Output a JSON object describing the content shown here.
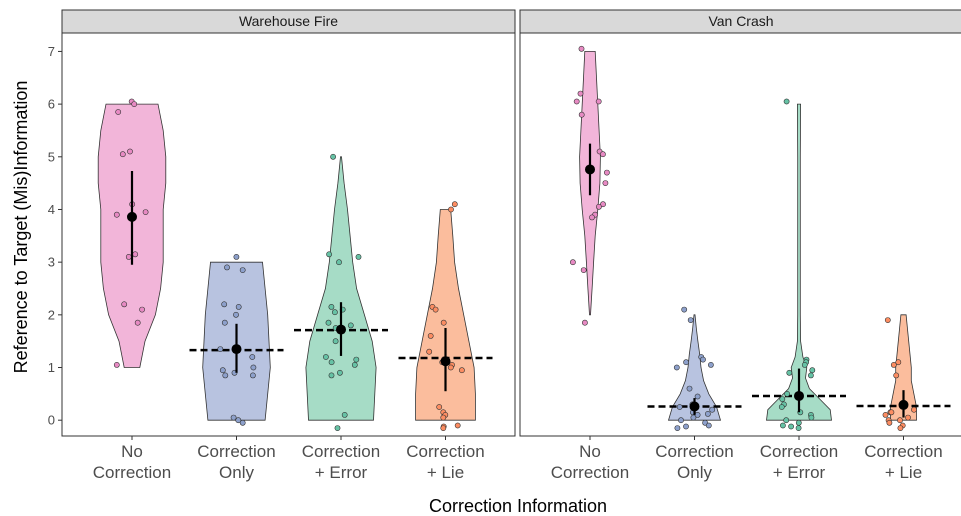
{
  "chart_data": {
    "type": "violin",
    "xlabel": "Correction Information",
    "ylabel": "Reference to Target (Mis)Information",
    "ylim": [
      -0.3,
      7.35
    ],
    "yticks": [
      0,
      1,
      2,
      3,
      4,
      5,
      6,
      7
    ],
    "grid": false,
    "categories": [
      [
        "No",
        "Correction"
      ],
      [
        "Correction",
        "Only"
      ],
      [
        "Correction",
        "+ Error"
      ],
      [
        "Correction",
        "+ Lie"
      ]
    ],
    "colors": [
      "#f2b5d9",
      "#b8c3e0",
      "#a6dcc6",
      "#fbbd9d"
    ],
    "point_colors": [
      "#e78ac3",
      "#8da0cb",
      "#66c2a5",
      "#fc8d62"
    ],
    "panels": [
      {
        "title": "Warehouse Fire",
        "groups": [
          {
            "mean": 3.86,
            "ci": [
              2.95,
              4.73
            ],
            "reference": null,
            "violin": [
              [
                1.0,
                0.03
              ],
              [
                1.5,
                0.05
              ],
              [
                2.0,
                0.09
              ],
              [
                2.5,
                0.11
              ],
              [
                3.0,
                0.12
              ],
              [
                3.5,
                0.12
              ],
              [
                4.0,
                0.12
              ],
              [
                4.5,
                0.13
              ],
              [
                5.0,
                0.13
              ],
              [
                5.5,
                0.12
              ],
              [
                6.0,
                0.1
              ]
            ],
            "points": [
              6.05,
              6.0,
              5.85,
              5.05,
              5.1,
              4.1,
              3.9,
              3.95,
              3.15,
              3.1,
              2.2,
              2.1,
              1.85,
              1.05
            ]
          },
          {
            "mean": 1.35,
            "ci": [
              0.9,
              1.83
            ],
            "reference": 1.33,
            "violin": [
              [
                0.0,
                0.11
              ],
              [
                0.5,
                0.12
              ],
              [
                1.0,
                0.13
              ],
              [
                1.5,
                0.125
              ],
              [
                2.0,
                0.12
              ],
              [
                2.5,
                0.11
              ],
              [
                3.0,
                0.1
              ]
            ],
            "points": [
              3.1,
              2.9,
              2.85,
              2.2,
              2.15,
              2.0,
              1.85,
              1.35,
              1.2,
              1.0,
              0.95,
              0.9,
              0.85,
              0.85,
              0.05,
              0.0,
              -0.05
            ]
          },
          {
            "mean": 1.72,
            "ci": [
              1.22,
              2.24
            ],
            "reference": 1.71,
            "violin": [
              [
                0.0,
                0.125
              ],
              [
                0.5,
                0.13
              ],
              [
                1.0,
                0.135
              ],
              [
                1.5,
                0.12
              ],
              [
                2.0,
                0.09
              ],
              [
                2.5,
                0.06
              ],
              [
                3.0,
                0.045
              ],
              [
                3.5,
                0.035
              ],
              [
                4.0,
                0.025
              ],
              [
                4.5,
                0.012
              ],
              [
                5.0,
                0.002
              ]
            ],
            "points": [
              5.0,
              3.15,
              3.1,
              3.0,
              2.15,
              2.1,
              2.05,
              1.85,
              1.8,
              1.75,
              1.5,
              1.2,
              1.15,
              1.1,
              1.05,
              0.9,
              0.85,
              0.1,
              -0.15
            ]
          },
          {
            "mean": 1.12,
            "ci": [
              0.55,
              1.75
            ],
            "reference": 1.18,
            "violin": [
              [
                0.0,
                0.115
              ],
              [
                0.5,
                0.115
              ],
              [
                1.0,
                0.11
              ],
              [
                1.5,
                0.09
              ],
              [
                2.0,
                0.07
              ],
              [
                2.5,
                0.05
              ],
              [
                3.0,
                0.035
              ],
              [
                3.5,
                0.028
              ],
              [
                4.0,
                0.02
              ]
            ],
            "points": [
              4.1,
              4.0,
              2.15,
              2.1,
              1.85,
              1.6,
              1.3,
              1.1,
              1.05,
              1.0,
              0.95,
              0.25,
              0.15,
              0.1,
              0.05,
              -0.1,
              -0.12,
              -0.15
            ]
          }
        ]
      },
      {
        "title": "Van Crash",
        "groups": [
          {
            "mean": 4.76,
            "ci": [
              4.27,
              5.25
            ],
            "reference": null,
            "violin": [
              [
                2.0,
                0.002
              ],
              [
                2.5,
                0.008
              ],
              [
                3.0,
                0.014
              ],
              [
                3.5,
                0.02
              ],
              [
                4.0,
                0.03
              ],
              [
                4.5,
                0.038
              ],
              [
                5.0,
                0.04
              ],
              [
                5.5,
                0.035
              ],
              [
                6.0,
                0.03
              ],
              [
                6.5,
                0.025
              ],
              [
                7.0,
                0.02
              ]
            ],
            "points": [
              7.05,
              6.2,
              6.05,
              6.05,
              5.8,
              5.1,
              5.05,
              4.7,
              4.5,
              4.1,
              4.05,
              3.9,
              3.85,
              3.0,
              2.85,
              1.85
            ]
          },
          {
            "mean": 0.26,
            "ci": [
              0.1,
              0.42
            ],
            "reference": 0.26,
            "violin": [
              [
                0.0,
                0.1
              ],
              [
                0.25,
                0.085
              ],
              [
                0.5,
                0.055
              ],
              [
                0.75,
                0.035
              ],
              [
                1.0,
                0.025
              ],
              [
                1.25,
                0.02
              ],
              [
                1.5,
                0.013
              ],
              [
                1.75,
                0.007
              ],
              [
                2.0,
                0.002
              ]
            ],
            "points": [
              2.1,
              1.9,
              1.2,
              1.15,
              1.1,
              1.05,
              1.0,
              0.6,
              0.45,
              0.3,
              0.25,
              0.2,
              0.15,
              0.12,
              0.1,
              0.05,
              0.0,
              -0.05,
              -0.1,
              -0.12,
              -0.15
            ]
          },
          {
            "mean": 0.46,
            "ci": [
              0.15,
              0.98
            ],
            "reference": 0.46,
            "violin": [
              [
                0.0,
                0.125
              ],
              [
                0.2,
                0.12
              ],
              [
                0.4,
                0.08
              ],
              [
                0.6,
                0.04
              ],
              [
                0.8,
                0.025
              ],
              [
                1.0,
                0.03
              ],
              [
                1.2,
                0.015
              ],
              [
                1.5,
                0.006
              ],
              [
                2.0,
                0.005
              ],
              [
                3.0,
                0.005
              ],
              [
                4.0,
                0.005
              ],
              [
                5.0,
                0.005
              ],
              [
                6.0,
                0.006
              ]
            ],
            "points": [
              6.05,
              1.15,
              1.1,
              1.05,
              0.95,
              0.9,
              0.85,
              0.5,
              0.4,
              0.3,
              0.25,
              0.15,
              0.1,
              0.05,
              0.0,
              -0.05,
              -0.1,
              -0.12,
              -0.15
            ]
          },
          {
            "mean": 0.29,
            "ci": [
              0.05,
              0.57
            ],
            "reference": 0.27,
            "violin": [
              [
                0.0,
                0.05
              ],
              [
                0.25,
                0.05
              ],
              [
                0.5,
                0.04
              ],
              [
                0.75,
                0.03
              ],
              [
                1.0,
                0.03
              ],
              [
                1.25,
                0.025
              ],
              [
                1.5,
                0.02
              ],
              [
                1.75,
                0.015
              ],
              [
                2.0,
                0.01
              ]
            ],
            "points": [
              1.9,
              1.1,
              1.05,
              0.85,
              0.2,
              0.15,
              0.15,
              0.1,
              0.05,
              0.0,
              0.0,
              -0.05,
              -0.1,
              -0.15
            ]
          }
        ]
      }
    ]
  }
}
